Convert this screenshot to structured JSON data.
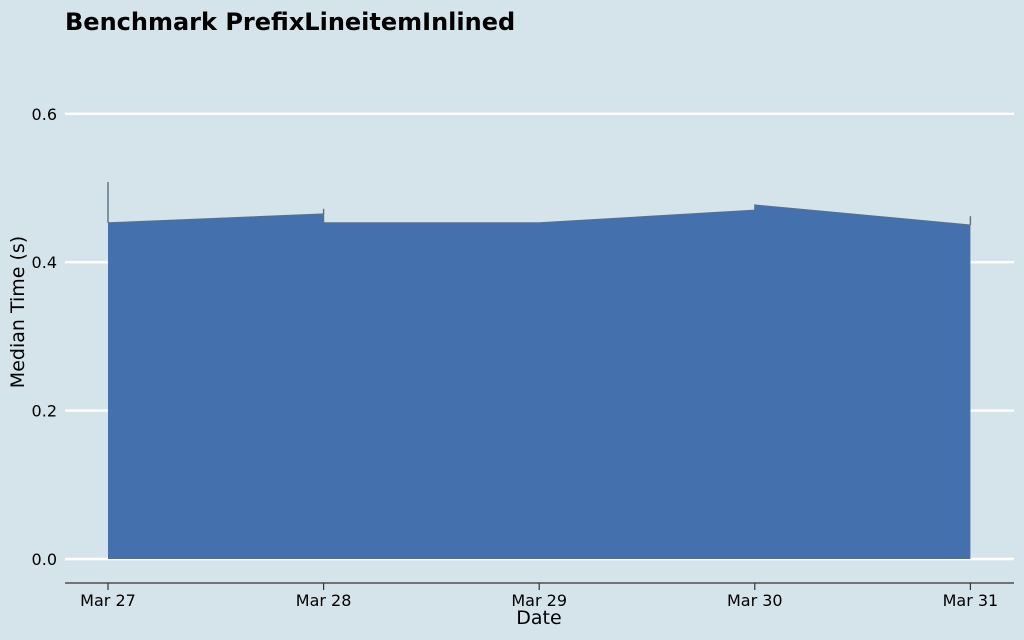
{
  "chart_data": {
    "type": "area",
    "title": "Benchmark PrefixLineitemInlined",
    "xlabel": "Date",
    "ylabel": "Median Time (s)",
    "x_ticks": [
      "Mar 27",
      "Mar 28",
      "Mar 29",
      "Mar 30",
      "Mar 31"
    ],
    "y_ticks": [
      "0.0",
      "0.2",
      "0.4",
      "0.6"
    ],
    "ylim": [
      0,
      0.68
    ],
    "xlim": [
      "Mar 26 19:00",
      "Mar 31 14:00"
    ],
    "grid": "horizontal",
    "series": [
      {
        "x": [
          "Mar 27 00:00",
          "Mar 28 00:00",
          "Mar 28 00:00",
          "Mar 29 00:00",
          "Mar 30 00:00",
          "Mar 30 00:00",
          "Mar 31 00:00"
        ],
        "values": [
          0.453,
          0.465,
          0.453,
          0.453,
          0.47,
          0.477,
          0.45
        ],
        "spikes": [
          {
            "x": "Mar 27 00:00",
            "value": 0.508
          },
          {
            "x": "Mar 28 00:00",
            "value": 0.472
          },
          {
            "x": "Mar 31 00:00",
            "value": 0.462
          }
        ]
      }
    ],
    "colors": {
      "background": "#d5e3ea",
      "area": "#4470ad",
      "edge": "#5a6f86",
      "grid": "#ffffff",
      "axis": "#333333"
    }
  }
}
